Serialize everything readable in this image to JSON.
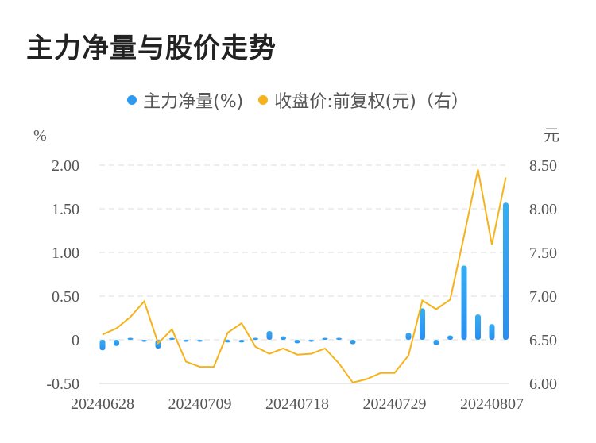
{
  "title": "主力净量与股价走势",
  "colors": {
    "bar": "#2b9af3",
    "line": "#f6b21a"
  },
  "chart_data": {
    "type": "bar+line",
    "legend": [
      "主力净量(%)",
      "收盘价:前复权(元)（右）"
    ],
    "legend_position": "top",
    "grid": true,
    "left_unit": "%",
    "right_unit": "元",
    "left_ticks": [
      "2.00",
      "1.50",
      "1.00",
      "0.50",
      "0",
      "-0.50"
    ],
    "right_ticks": [
      "8.50",
      "8.00",
      "7.50",
      "7.00",
      "6.50",
      "6.00"
    ],
    "ylim_left": [
      -0.5,
      2.0
    ],
    "ylim_right": [
      6.0,
      8.5
    ],
    "x_tick_labels": [
      "20240628",
      "20240709",
      "20240718",
      "20240729",
      "20240807"
    ],
    "x": [
      "20240628",
      "20240701",
      "20240702",
      "20240703",
      "20240704",
      "20240705",
      "20240708",
      "20240709",
      "20240710",
      "20240711",
      "20240712",
      "20240715",
      "20240716",
      "20240717",
      "20240718",
      "20240719",
      "20240722",
      "20240723",
      "20240724",
      "20240725",
      "20240726",
      "20240729",
      "20240730",
      "20240731",
      "20240801",
      "20240802",
      "20240805",
      "20240806",
      "20240807",
      "20240808"
    ],
    "series": [
      {
        "name": "主力净量(%)",
        "type": "bar",
        "axis": "left",
        "values": [
          -0.12,
          -0.07,
          0.02,
          -0.01,
          -0.1,
          0.01,
          -0.02,
          -0.02,
          0,
          -0.03,
          -0.03,
          0.01,
          0.1,
          0.04,
          -0.04,
          -0.005,
          0.005,
          0.01,
          -0.05,
          0,
          0,
          0,
          0.08,
          0.36,
          -0.06,
          0.05,
          0.85,
          0.29,
          0.18,
          1.57
        ]
      },
      {
        "name": "收盘价:前复权(元)（右）",
        "type": "line",
        "axis": "right",
        "values": [
          6.56,
          6.63,
          6.76,
          6.94,
          6.46,
          6.62,
          6.25,
          6.19,
          6.19,
          6.58,
          6.69,
          6.42,
          6.34,
          6.4,
          6.33,
          6.34,
          6.4,
          6.23,
          6.01,
          6.05,
          6.12,
          6.12,
          6.32,
          6.95,
          6.85,
          6.96,
          7.69,
          8.45,
          7.59,
          8.36
        ]
      }
    ]
  }
}
